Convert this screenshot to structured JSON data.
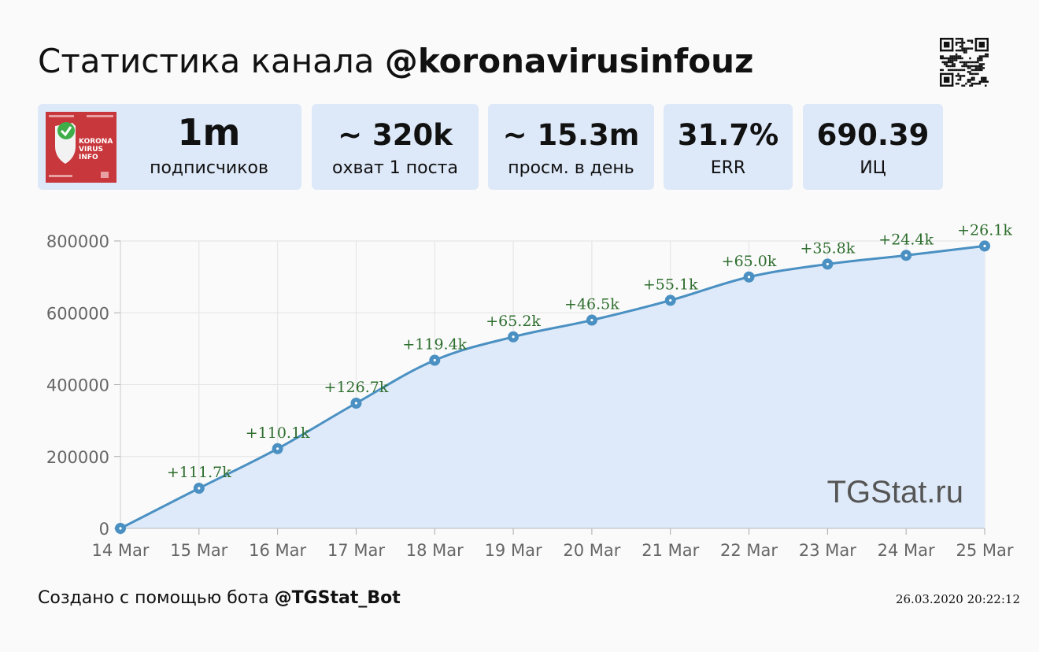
{
  "header": {
    "title_prefix": "Статистика канала",
    "title_handle": "@koronavirusinfouz"
  },
  "cards": [
    {
      "value": "1m",
      "label": "подписчиков"
    },
    {
      "value": "~ 320k",
      "label": "охват 1 поста"
    },
    {
      "value": "~ 15.3m",
      "label": "просм. в день"
    },
    {
      "value": "31.7%",
      "label": "ERR"
    },
    {
      "value": "690.39",
      "label": "ИЦ"
    }
  ],
  "avatar": {
    "lines": [
      "KORONA",
      "VIRUS",
      "INFO"
    ],
    "color": "#c8373c"
  },
  "watermark": "TGStat.ru",
  "footer": {
    "made_with": "Создано с помощью бота",
    "bot": "@TGStat_Bot",
    "timestamp": "26.03.2020 20:22:12"
  },
  "chart_data": {
    "type": "area",
    "categories": [
      "14 Mar",
      "15 Mar",
      "16 Mar",
      "17 Mar",
      "18 Mar",
      "19 Mar",
      "20 Mar",
      "21 Mar",
      "22 Mar",
      "23 Mar",
      "24 Mar",
      "25 Mar"
    ],
    "values": [
      0,
      111700,
      221800,
      348500,
      467900,
      533100,
      579600,
      634700,
      699700,
      735500,
      759900,
      786000
    ],
    "labels": [
      "",
      "+111.7k",
      "+110.1k",
      "+126.7k",
      "+119.4k",
      "+65.2k",
      "+46.5k",
      "+55.1k",
      "+65.0k",
      "+35.8k",
      "+24.4k",
      "+26.1k"
    ],
    "yticks": [
      "0",
      "200000",
      "400000",
      "600000",
      "800000"
    ],
    "ylim": [
      0,
      800000
    ],
    "grid": true,
    "line_color": "#4a90c2",
    "fill_color": "#deeaf9",
    "label_color": "#2e6e2e"
  }
}
